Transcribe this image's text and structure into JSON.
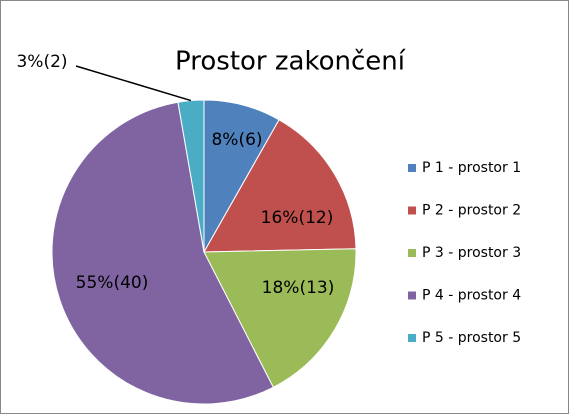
{
  "chart_data": {
    "type": "pie",
    "title": "Prostor zakončení",
    "categories": [
      "P 1 - prostor 1",
      "P 2 - prostor 2",
      "P 3 - prostor 3",
      "P 4 - prostor 4",
      "P 5 - prostor 5"
    ],
    "values": [
      6,
      12,
      13,
      40,
      2
    ],
    "value_labels": [
      "8%(6)",
      "16%(12)",
      "18%(13)",
      "55%(40)",
      "3%(2)"
    ],
    "colors": [
      "#4f81bd",
      "#c0504d",
      "#9bbb59",
      "#8064a2",
      "#4bacc6"
    ],
    "legend": "right"
  }
}
